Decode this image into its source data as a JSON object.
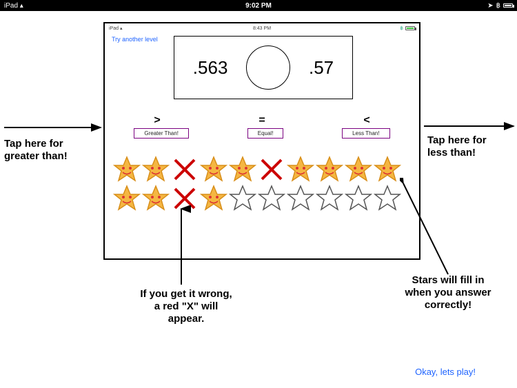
{
  "outer_status": {
    "device": "iPad",
    "time": "9:02 PM"
  },
  "inner_status": {
    "device": "iPad",
    "time": "8:43 PM"
  },
  "try_link": "Try another level",
  "comparison": {
    "left": ".563",
    "right": ".57"
  },
  "symbols": {
    "gt": ">",
    "eq": "=",
    "lt": "<"
  },
  "buttons": {
    "gt": "Greater Than!",
    "eq": "Equal!",
    "lt": "Less Than!"
  },
  "stars_row1": [
    "face",
    "face",
    "x",
    "face",
    "face",
    "x",
    "face",
    "face",
    "face",
    "face"
  ],
  "stars_row2": [
    "face",
    "face",
    "x",
    "face",
    "empty",
    "empty",
    "empty",
    "empty",
    "empty",
    "empty"
  ],
  "colors": {
    "star_fill": "#f5b642",
    "star_stroke": "#d88f1a",
    "x_color": "#cc0000",
    "btn_border": "#7a0080",
    "link": "#1e63ff"
  },
  "callouts": {
    "gt": "Tap here for\ngreater than!",
    "lt": "Tap here for\nless than!",
    "wrong": "If you get it wrong,\na red \"X\" will\nappear.",
    "correct": "Stars will fill in\nwhen you answer\ncorrectly!"
  },
  "play": "Okay, lets play!"
}
